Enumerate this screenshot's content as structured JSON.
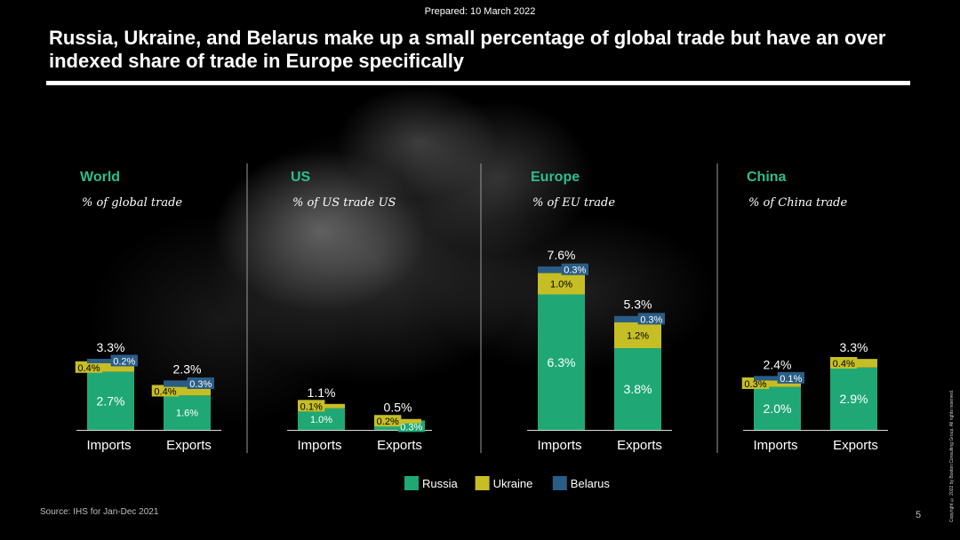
{
  "header": {
    "prepared": "Prepared: 10 March 2022",
    "title": "Russia, Ukraine, and Belarus make up a small percentage of global trade but have an over indexed share of trade in Europe specifically"
  },
  "footer": {
    "source": "Source: IHS for Jan-Dec 2021",
    "page_number": "5",
    "copyright": "Copyright © 2022 by Boston Consulting Group. All rights reserved."
  },
  "colors": {
    "Russia": "#1fa876",
    "Ukraine": "#c6be25",
    "Belarus": "#2a5d86",
    "title_green": "#2dbd8e"
  },
  "chart_data": {
    "type": "bar",
    "stacked": true,
    "unit": "%",
    "legend": [
      "Russia",
      "Ukraine",
      "Belarus"
    ],
    "legend_position": "bottom-center",
    "panels": [
      {
        "title": "World",
        "subtitle": "% of global trade",
        "categories": [
          "Imports",
          "Exports"
        ],
        "series": [
          {
            "name": "Russia",
            "values": [
              2.7,
              1.6
            ],
            "labels": [
              "2.7%",
              "1.6%"
            ]
          },
          {
            "name": "Ukraine",
            "values": [
              0.4,
              0.4
            ],
            "labels": [
              "0.4%",
              "0.4%"
            ]
          },
          {
            "name": "Belarus",
            "values": [
              0.2,
              0.3
            ],
            "labels": [
              "0.2%",
              "0.3%"
            ]
          }
        ],
        "totals": [
          "3.3%",
          "2.3%"
        ]
      },
      {
        "title": "US",
        "subtitle": "% of US trade US",
        "categories": [
          "Imports",
          "Exports"
        ],
        "series": [
          {
            "name": "Russia",
            "values": [
              1.0,
              0.3
            ],
            "labels": [
              "1.0%",
              "0.3%"
            ]
          },
          {
            "name": "Ukraine",
            "values": [
              0.1,
              0.2
            ],
            "labels": [
              "0.1%",
              "0.2%"
            ]
          },
          {
            "name": "Belarus",
            "values": [
              0,
              0
            ],
            "labels": [
              "",
              ""
            ]
          }
        ],
        "totals": [
          "1.1%",
          "0.5%"
        ]
      },
      {
        "title": "Europe",
        "subtitle": "% of EU trade",
        "categories": [
          "Imports",
          "Exports"
        ],
        "series": [
          {
            "name": "Russia",
            "values": [
              6.3,
              3.8
            ],
            "labels": [
              "6.3%",
              "3.8%"
            ]
          },
          {
            "name": "Ukraine",
            "values": [
              1.0,
              1.2
            ],
            "labels": [
              "1.0%",
              "1.2%"
            ]
          },
          {
            "name": "Belarus",
            "values": [
              0.3,
              0.3
            ],
            "labels": [
              "0.3%",
              "0.3%"
            ]
          }
        ],
        "totals": [
          "7.6%",
          "5.3%"
        ]
      },
      {
        "title": "China",
        "subtitle": "% of China trade",
        "categories": [
          "Imports",
          "Exports"
        ],
        "series": [
          {
            "name": "Russia",
            "values": [
              2.0,
              2.9
            ],
            "labels": [
              "2.0%",
              "2.9%"
            ]
          },
          {
            "name": "Ukraine",
            "values": [
              0.3,
              0.4
            ],
            "labels": [
              "0.3%",
              "0.4%"
            ]
          },
          {
            "name": "Belarus",
            "values": [
              0.1,
              0
            ],
            "labels": [
              "0.1%",
              ""
            ]
          }
        ],
        "totals": [
          "2.4%",
          "3.3%"
        ]
      }
    ]
  }
}
